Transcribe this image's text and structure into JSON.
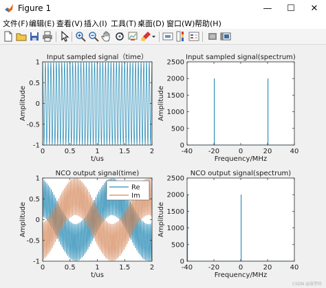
{
  "window": {
    "title": "Figure 1",
    "controls": {
      "minimize": "—",
      "maximize": "☐",
      "close": "✕"
    }
  },
  "menu": [
    {
      "label": "文件(F)"
    },
    {
      "label": "编辑(E)"
    },
    {
      "label": "查看(V)"
    },
    {
      "label": "插入(I)"
    },
    {
      "label": "工具(T)"
    },
    {
      "label": "桌面(D)"
    },
    {
      "label": "窗口(W)"
    },
    {
      "label": "帮助(H)"
    }
  ],
  "toolbar": [
    "new-figure-icon",
    "open-file-icon",
    "save-icon",
    "print-icon",
    "pointer-icon",
    "zoom-in-icon",
    "zoom-out-icon",
    "pan-icon",
    "rotate-icon",
    "data-cursor-icon",
    "brush-icon",
    "colorbar-icon",
    "legend-icon",
    "hide-plot-tools-icon",
    "show-plot-tools-icon"
  ],
  "watermark": "CSDN @张学社",
  "colors": {
    "series1": "#2f8fb8",
    "series2": "#d4875a",
    "axes": "#262626",
    "window_bg": "#f0f0f0"
  },
  "chart_data": [
    {
      "type": "line",
      "title": "Input sampled signal（time）",
      "xlabel": "t/us",
      "ylabel": "Amplitude",
      "xlim": [
        0,
        2
      ],
      "ylim": [
        -1,
        1
      ],
      "xticks": [
        "0",
        "0.5",
        "1",
        "1.5",
        "2"
      ],
      "yticks": [
        "-1",
        "-0.5",
        "0",
        "0.5",
        "1"
      ],
      "series": [
        {
          "signal": "cos(2π·20MHz·t)",
          "frequency_mhz": 20,
          "amplitude": 1
        }
      ]
    },
    {
      "type": "line",
      "title": "Input sampled signal(spectrum)",
      "xlabel": "Frequency/MHz",
      "ylabel": "Amplitude",
      "xlim": [
        -40,
        40
      ],
      "ylim": [
        0,
        2500
      ],
      "xticks": [
        "-40",
        "-20",
        "0",
        "20",
        "40"
      ],
      "yticks": [
        "0",
        "500",
        "1000",
        "1500",
        "2000",
        "2500"
      ],
      "peaks": [
        {
          "x": -20,
          "y": 2000
        },
        {
          "x": 20,
          "y": 2000
        }
      ]
    },
    {
      "type": "line",
      "title": "NCO output signal(time)",
      "xlabel": "t/us",
      "ylabel": "Amplitude",
      "xlim": [
        0,
        2
      ],
      "ylim": [
        -1,
        1
      ],
      "xticks": [
        "0",
        "0.5",
        "1",
        "1.5",
        "2"
      ],
      "yticks": [
        "-1",
        "-0.5",
        "0",
        "0.5",
        "1"
      ],
      "legend_position": "top-right",
      "series": [
        {
          "name": "Re",
          "color": "#2f8fb8"
        },
        {
          "name": "Im",
          "color": "#d4875a"
        }
      ]
    },
    {
      "type": "line",
      "title": "NCO output signal(spectrum)",
      "xlabel": "Frequency/MHz",
      "ylabel": "Amplitude",
      "xlim": [
        -40,
        40
      ],
      "ylim": [
        0,
        2500
      ],
      "xticks": [
        "-40",
        "-20",
        "0",
        "20",
        "40"
      ],
      "yticks": [
        "0",
        "500",
        "1000",
        "1500",
        "2000",
        "2500"
      ],
      "peaks": [
        {
          "x": -40,
          "y": 2000
        },
        {
          "x": 0,
          "y": 2000
        }
      ]
    }
  ]
}
